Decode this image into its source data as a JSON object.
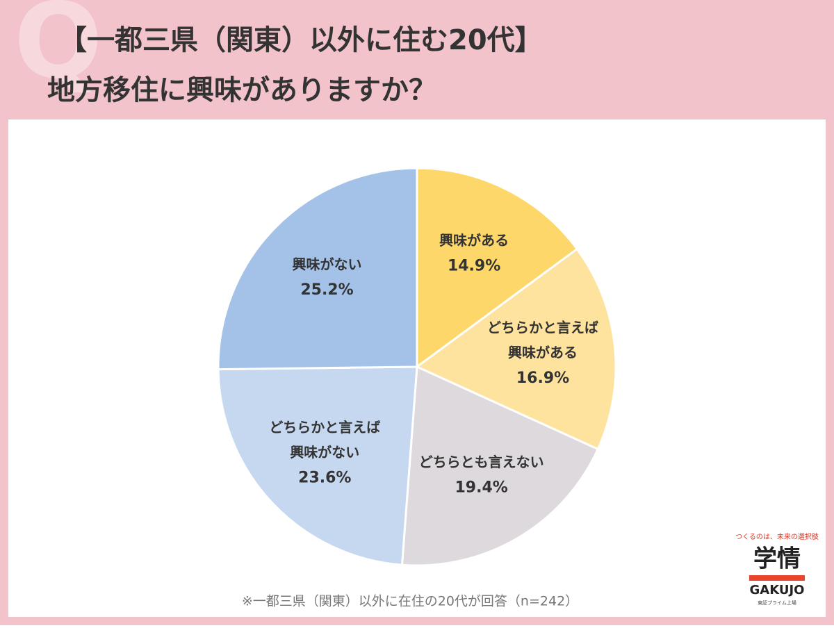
{
  "watermark": "Q",
  "title_lines": [
    "【一都三県（関東）以外に住む20代】",
    "地方移住に興味がありますか？"
  ],
  "chart_data": {
    "type": "pie",
    "categories": [
      [
        "興味がある"
      ],
      [
        "どちらかと言えば",
        "興味がある"
      ],
      [
        "どちらとも言えない"
      ],
      [
        "どちらかと言えば",
        "興味がない"
      ],
      [
        "興味がない"
      ]
    ],
    "values": [
      14.9,
      16.9,
      19.4,
      23.6,
      25.2
    ],
    "value_labels": [
      "14.9%",
      "16.9%",
      "19.4%",
      "23.6%",
      "25.2%"
    ],
    "colors": [
      "#fdd76a",
      "#fee39f",
      "#ddd9dc",
      "#c6d8f0",
      "#a4c2e8"
    ],
    "note": "※一都三県（関東）以外に在住の20代が回答（n=242）"
  },
  "logo": {
    "tagline": "つくるのは、未来の選択肢",
    "name": "学情",
    "roman": "GAKUJO",
    "market": "東証プライム上場"
  }
}
